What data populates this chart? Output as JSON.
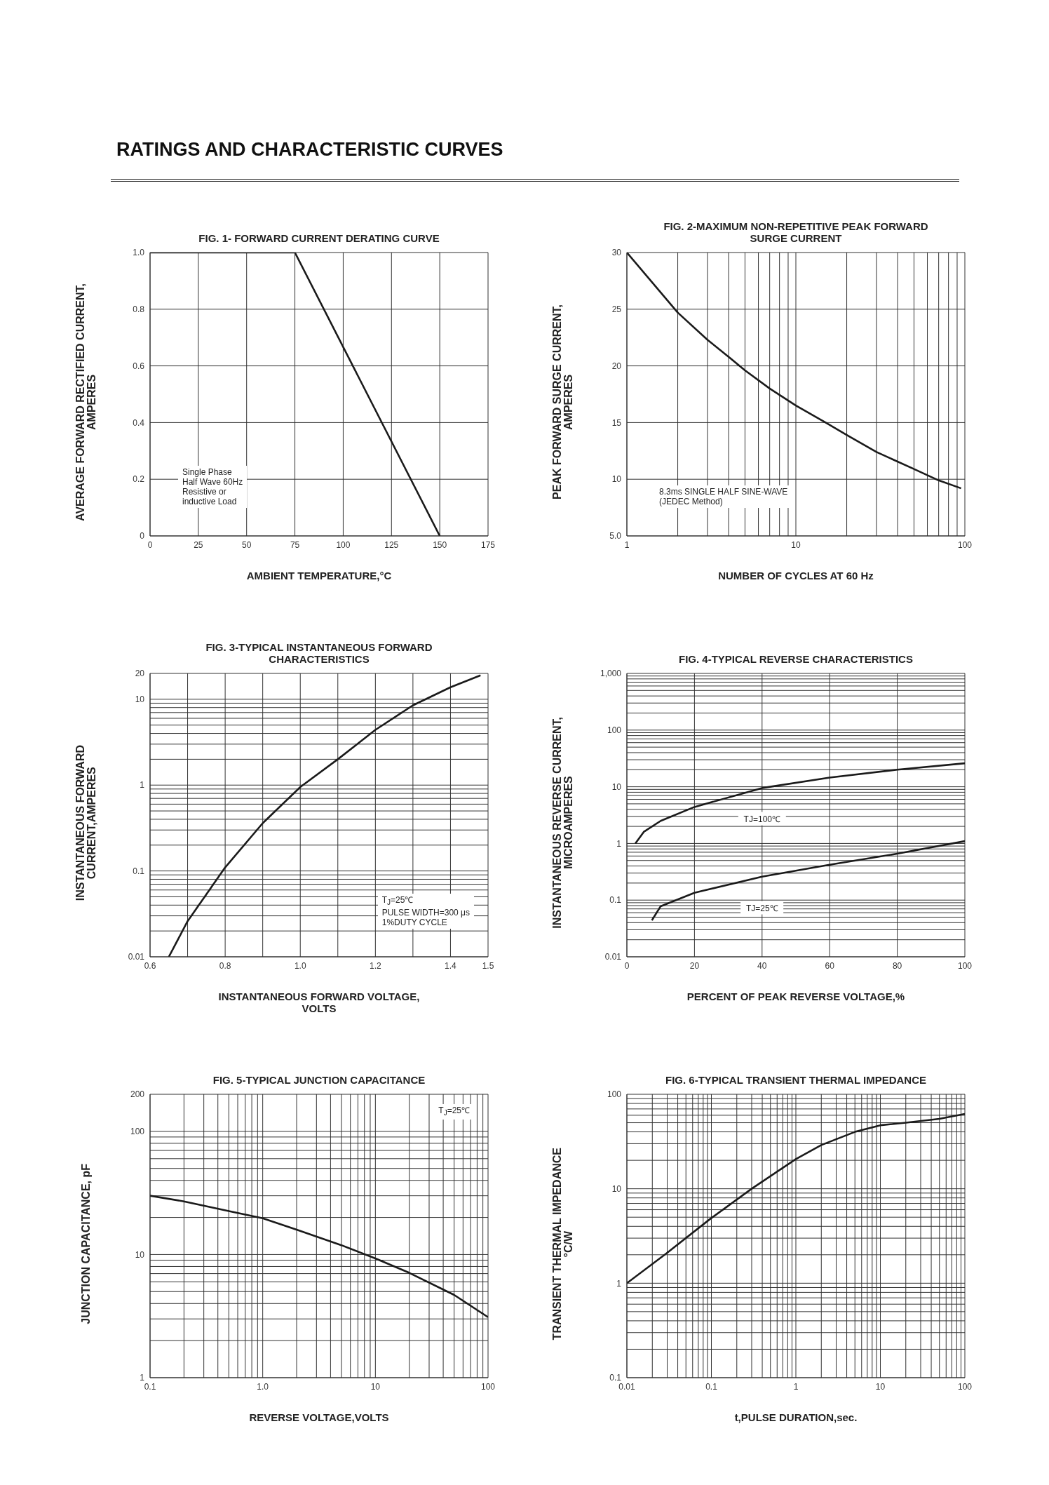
{
  "chart_data": [
    {
      "type": "line",
      "title": "RATINGS AND CHARACTERISTIC CURVES",
      "subtitle": "FIG. 1- FORWARD CURRENT DERATING CURVE",
      "xlabel": "AMBIENT TEMPERATURE,°C",
      "ylabel": "AVERAGE FORWARD RECTIFIED CURRENT,\nAMPERES",
      "x": [
        0,
        75,
        150
      ],
      "series": [
        {
          "color": "#1a1a1a",
          "values": [
            1,
            1,
            0
          ]
        }
      ],
      "xlim": [
        0,
        175
      ],
      "xticks": [
        0,
        25,
        50,
        75,
        100,
        125,
        150,
        175
      ],
      "ylim": [
        0,
        1
      ],
      "yticks": [
        0,
        0.2,
        0.4,
        0.6,
        0.8,
        {
          "value": 1,
          "label": "1.0"
        }
      ],
      "grid": true,
      "annotations": [
        "Single Phase\nHalf Wave 60Hz\nResistive or\ninductive Load"
      ]
    },
    {
      "type": "line",
      "title": "FIG. 2-MAXIMUM NON-REPETITIVE PEAK FORWARD\nSURGE CURRENT",
      "xlabel": "NUMBER OF CYCLES AT 60 Hz",
      "ylabel": "PEAK   FORWARD SURGE CURRENT,\nAMPERES",
      "x": [
        1,
        2,
        3,
        4,
        5,
        7,
        10,
        15,
        20,
        30,
        50,
        70,
        95
      ],
      "series": [
        {
          "color": "#1a1a1a",
          "values": [
            30,
            24.7,
            22.3,
            20.8,
            19.6,
            18,
            16.5,
            15,
            13.9,
            12.4,
            10.9,
            9.9,
            9.2
          ]
        }
      ],
      "log": "x",
      "xlim": [
        1,
        100
      ],
      "xticks": [
        1,
        {
          "value": 2,
          "label": null
        },
        {
          "value": 3,
          "label": null
        },
        {
          "value": 4,
          "label": null
        },
        {
          "value": 5,
          "label": null
        },
        {
          "value": 6,
          "label": null
        },
        {
          "value": 7,
          "label": null
        },
        {
          "value": 8,
          "label": null
        },
        {
          "value": 9,
          "label": null
        },
        10,
        {
          "value": 20,
          "label": null
        },
        {
          "value": 30,
          "label": null
        },
        {
          "value": 40,
          "label": null
        },
        {
          "value": 50,
          "label": null
        },
        {
          "value": 60,
          "label": null
        },
        {
          "value": 70,
          "label": null
        },
        {
          "value": 80,
          "label": null
        },
        {
          "value": 90,
          "label": null
        },
        100
      ],
      "ylim": [
        5,
        30
      ],
      "yticks": [
        {
          "value": 5,
          "label": "5.0"
        },
        10,
        15,
        20,
        25,
        30
      ],
      "grid": true,
      "annotations": [
        "8.3ms SINGLE HALF SINE-WAVE\n(JEDEC Method)"
      ]
    },
    {
      "type": "line",
      "title": "FIG. 3-TYPICAL INSTANTANEOUS FORWARD\nCHARACTERISTICS",
      "xlabel": "INSTANTANEOUS FORWARD VOLTAGE,\nVOLTS",
      "ylabel": "INSTANTANEOUS FORWARD\nCURRENT,AMPERES",
      "x": [
        0.65,
        0.7,
        0.8,
        0.9,
        1.0,
        1.1,
        1.2,
        1.3,
        1.4,
        1.48
      ],
      "series": [
        {
          "color": "#1a1a1a",
          "values": [
            0.01,
            0.026,
            0.11,
            0.36,
            0.95,
            2.0,
            4.4,
            8.5,
            13.8,
            19
          ]
        }
      ],
      "log": "y",
      "xlim": [
        0.6,
        1.5
      ],
      "xticks": [
        0.6,
        {
          "value": 0.7,
          "label": null
        },
        0.8,
        {
          "value": 0.9,
          "label": null
        },
        {
          "value": 1,
          "label": "1.0"
        },
        {
          "value": 1.1,
          "label": null
        },
        1.2,
        {
          "value": 1.3,
          "label": null
        },
        1.4,
        1.5
      ],
      "ylim": [
        0.01,
        20
      ],
      "yticks": [
        0.01,
        {
          "value": 0.02,
          "label": null
        },
        {
          "value": 0.03,
          "label": null
        },
        {
          "value": 0.04,
          "label": null
        },
        {
          "value": 0.05,
          "label": null
        },
        {
          "value": 0.06,
          "label": null
        },
        {
          "value": 0.07,
          "label": null
        },
        {
          "value": 0.08,
          "label": null
        },
        {
          "value": 0.09,
          "label": null
        },
        0.1,
        {
          "value": 0.2,
          "label": null
        },
        {
          "value": 0.3,
          "label": null
        },
        {
          "value": 0.4,
          "label": null
        },
        {
          "value": 0.5,
          "label": null
        },
        {
          "value": 0.6,
          "label": null
        },
        {
          "value": 0.7,
          "label": null
        },
        {
          "value": 0.8,
          "label": null
        },
        {
          "value": 0.9,
          "label": null
        },
        1,
        {
          "value": 2,
          "label": null
        },
        {
          "value": 3,
          "label": null
        },
        {
          "value": 4,
          "label": null
        },
        {
          "value": 5,
          "label": null
        },
        {
          "value": 6,
          "label": null
        },
        {
          "value": 7,
          "label": null
        },
        {
          "value": 8,
          "label": null
        },
        {
          "value": 9,
          "label": null
        },
        10,
        20
      ],
      "grid": true,
      "annotations": [
        "T$_{J}$=25℃\nPULSE WIDTH=300 μs\n1%DUTY CYCLE"
      ]
    },
    {
      "type": "line",
      "title": "FIG. 4-TYPICAL REVERSE CHARACTERISTICS",
      "xlabel": "PERCENT OF PEAK REVERSE VOLTAGE,%",
      "ylabel": "INSTANTANEOUS REVERSE CURRENT,\nMICROAMPERES",
      "series": [
        {
          "name": "TJ=100℃",
          "color": "#1a1a1a",
          "x": [
            2.5,
            5,
            10,
            20,
            40,
            60,
            80,
            100
          ],
          "values": [
            1.0,
            1.6,
            2.5,
            4.4,
            9.5,
            14.5,
            20,
            26
          ]
        },
        {
          "name": "TJ=25℃",
          "color": "#1a1a1a",
          "x": [
            7.4,
            10,
            20,
            40,
            60,
            80,
            100
          ],
          "values": [
            0.044,
            0.078,
            0.135,
            0.26,
            0.42,
            0.66,
            1.1
          ]
        }
      ],
      "log": "y",
      "xlim": [
        0,
        100
      ],
      "xticks": [
        0,
        20,
        40,
        60,
        80,
        100
      ],
      "ylim": [
        0.01,
        1000
      ],
      "yticks": [
        0.01,
        {
          "value": 0.02,
          "label": null
        },
        {
          "value": 0.03,
          "label": null
        },
        {
          "value": 0.04,
          "label": null
        },
        {
          "value": 0.05,
          "label": null
        },
        {
          "value": 0.06,
          "label": null
        },
        {
          "value": 0.07,
          "label": null
        },
        {
          "value": 0.08,
          "label": null
        },
        {
          "value": 0.09,
          "label": null
        },
        0.1,
        {
          "value": 0.2,
          "label": null
        },
        {
          "value": 0.3,
          "label": null
        },
        {
          "value": 0.4,
          "label": null
        },
        {
          "value": 0.5,
          "label": null
        },
        {
          "value": 0.6,
          "label": null
        },
        {
          "value": 0.7,
          "label": null
        },
        {
          "value": 0.8,
          "label": null
        },
        {
          "value": 0.9,
          "label": null
        },
        1,
        {
          "value": 2,
          "label": null
        },
        {
          "value": 3,
          "label": null
        },
        {
          "value": 4,
          "label": null
        },
        {
          "value": 5,
          "label": null
        },
        {
          "value": 6,
          "label": null
        },
        {
          "value": 7,
          "label": null
        },
        {
          "value": 8,
          "label": null
        },
        {
          "value": 9,
          "label": null
        },
        10,
        {
          "value": 20,
          "label": null
        },
        {
          "value": 30,
          "label": null
        },
        {
          "value": 40,
          "label": null
        },
        {
          "value": 50,
          "label": null
        },
        {
          "value": 60,
          "label": null
        },
        {
          "value": 70,
          "label": null
        },
        {
          "value": 80,
          "label": null
        },
        {
          "value": 90,
          "label": null
        },
        100,
        {
          "value": 200,
          "label": null
        },
        {
          "value": 300,
          "label": null
        },
        {
          "value": 400,
          "label": null
        },
        {
          "value": 500,
          "label": null
        },
        {
          "value": 600,
          "label": null
        },
        {
          "value": 700,
          "label": null
        },
        {
          "value": 800,
          "label": null
        },
        {
          "value": 900,
          "label": null
        },
        {
          "value": 1000,
          "label": "1,000"
        }
      ],
      "grid": true
    },
    {
      "type": "line",
      "title": "FIG. 5-TYPICAL JUNCTION CAPACITANCE",
      "xlabel": "REVERSE VOLTAGE,VOLTS",
      "ylabel": "JUNCTION CAPACITANCE, pF",
      "x": [
        0.1,
        0.2,
        0.5,
        1,
        2,
        5,
        10,
        20,
        50,
        100
      ],
      "series": [
        {
          "color": "#1a1a1a",
          "values": [
            30,
            27,
            22.5,
            19.7,
            15.9,
            11.9,
            9.3,
            7.1,
            4.7,
            3.1
          ]
        }
      ],
      "log": "xy",
      "xlim": [
        0.1,
        100
      ],
      "xticks": [
        0.1,
        {
          "value": 0.2,
          "label": null
        },
        {
          "value": 0.3,
          "label": null
        },
        {
          "value": 0.4,
          "label": null
        },
        {
          "value": 0.5,
          "label": null
        },
        {
          "value": 0.6,
          "label": null
        },
        {
          "value": 0.7,
          "label": null
        },
        {
          "value": 0.8,
          "label": null
        },
        {
          "value": 0.9,
          "label": null
        },
        {
          "value": 1,
          "label": "1.0"
        },
        {
          "value": 2,
          "label": null
        },
        {
          "value": 3,
          "label": null
        },
        {
          "value": 4,
          "label": null
        },
        {
          "value": 5,
          "label": null
        },
        {
          "value": 6,
          "label": null
        },
        {
          "value": 7,
          "label": null
        },
        {
          "value": 8,
          "label": null
        },
        {
          "value": 9,
          "label": null
        },
        10,
        {
          "value": 20,
          "label": null
        },
        {
          "value": 30,
          "label": null
        },
        {
          "value": 40,
          "label": null
        },
        {
          "value": 50,
          "label": null
        },
        {
          "value": 60,
          "label": null
        },
        {
          "value": 70,
          "label": null
        },
        {
          "value": 80,
          "label": null
        },
        {
          "value": 90,
          "label": null
        },
        100
      ],
      "ylim": [
        1,
        200
      ],
      "yticks": [
        1,
        {
          "value": 2,
          "label": null
        },
        {
          "value": 3,
          "label": null
        },
        {
          "value": 4,
          "label": null
        },
        {
          "value": 5,
          "label": null
        },
        {
          "value": 6,
          "label": null
        },
        {
          "value": 7,
          "label": null
        },
        {
          "value": 8,
          "label": null
        },
        {
          "value": 9,
          "label": null
        },
        10,
        {
          "value": 20,
          "label": null
        },
        {
          "value": 30,
          "label": null
        },
        {
          "value": 40,
          "label": null
        },
        {
          "value": 50,
          "label": null
        },
        {
          "value": 60,
          "label": null
        },
        {
          "value": 70,
          "label": null
        },
        {
          "value": 80,
          "label": null
        },
        {
          "value": 90,
          "label": null
        },
        100,
        200
      ],
      "grid": true,
      "annotations": [
        "T$_{J}$=25℃"
      ]
    },
    {
      "type": "line",
      "title": "FIG. 6-TYPICAL TRANSIENT THERMAL IMPEDANCE",
      "xlabel": "t,PULSE DURATION,sec.",
      "ylabel": "TRANSIENT THERMAL IMPEDANCE\n°C/W",
      "x": [
        0.01,
        0.03,
        0.1,
        0.3,
        1,
        2,
        5,
        10,
        20,
        50,
        100
      ],
      "series": [
        {
          "color": "#1a1a1a",
          "values": [
            1.0,
            2.1,
            4.9,
            10,
            20.6,
            29,
            40,
            47,
            50,
            55,
            62
          ]
        }
      ],
      "log": "xy",
      "xlim": [
        0.01,
        100
      ],
      "xticks": [
        0.01,
        {
          "value": 0.02,
          "label": null
        },
        {
          "value": 0.03,
          "label": null
        },
        {
          "value": 0.04,
          "label": null
        },
        {
          "value": 0.05,
          "label": null
        },
        {
          "value": 0.06,
          "label": null
        },
        {
          "value": 0.07,
          "label": null
        },
        {
          "value": 0.08,
          "label": null
        },
        {
          "value": 0.09,
          "label": null
        },
        0.1,
        {
          "value": 0.2,
          "label": null
        },
        {
          "value": 0.3,
          "label": null
        },
        {
          "value": 0.4,
          "label": null
        },
        {
          "value": 0.5,
          "label": null
        },
        {
          "value": 0.6,
          "label": null
        },
        {
          "value": 0.7,
          "label": null
        },
        {
          "value": 0.8,
          "label": null
        },
        {
          "value": 0.9,
          "label": null
        },
        1,
        {
          "value": 2,
          "label": null
        },
        {
          "value": 3,
          "label": null
        },
        {
          "value": 4,
          "label": null
        },
        {
          "value": 5,
          "label": null
        },
        {
          "value": 6,
          "label": null
        },
        {
          "value": 7,
          "label": null
        },
        {
          "value": 8,
          "label": null
        },
        {
          "value": 9,
          "label": null
        },
        10,
        {
          "value": 20,
          "label": null
        },
        {
          "value": 30,
          "label": null
        },
        {
          "value": 40,
          "label": null
        },
        {
          "value": 50,
          "label": null
        },
        {
          "value": 60,
          "label": null
        },
        {
          "value": 70,
          "label": null
        },
        {
          "value": 80,
          "label": null
        },
        {
          "value": 90,
          "label": null
        },
        100
      ],
      "ylim": [
        0.1,
        100
      ],
      "yticks": [
        0.1,
        {
          "value": 0.2,
          "label": null
        },
        {
          "value": 0.3,
          "label": null
        },
        {
          "value": 0.4,
          "label": null
        },
        {
          "value": 0.5,
          "label": null
        },
        {
          "value": 0.6,
          "label": null
        },
        {
          "value": 0.7,
          "label": null
        },
        {
          "value": 0.8,
          "label": null
        },
        {
          "value": 0.9,
          "label": null
        },
        1,
        {
          "value": 2,
          "label": null
        },
        {
          "value": 3,
          "label": null
        },
        {
          "value": 4,
          "label": null
        },
        {
          "value": 5,
          "label": null
        },
        {
          "value": 6,
          "label": null
        },
        {
          "value": 7,
          "label": null
        },
        {
          "value": 8,
          "label": null
        },
        {
          "value": 9,
          "label": null
        },
        10,
        {
          "value": 20,
          "label": null
        },
        {
          "value": 30,
          "label": null
        },
        {
          "value": 40,
          "label": null
        },
        {
          "value": 50,
          "label": null
        },
        {
          "value": 60,
          "label": null
        },
        {
          "value": 70,
          "label": null
        },
        {
          "value": 80,
          "label": null
        },
        {
          "value": 90,
          "label": null
        },
        100
      ],
      "grid": true
    }
  ]
}
